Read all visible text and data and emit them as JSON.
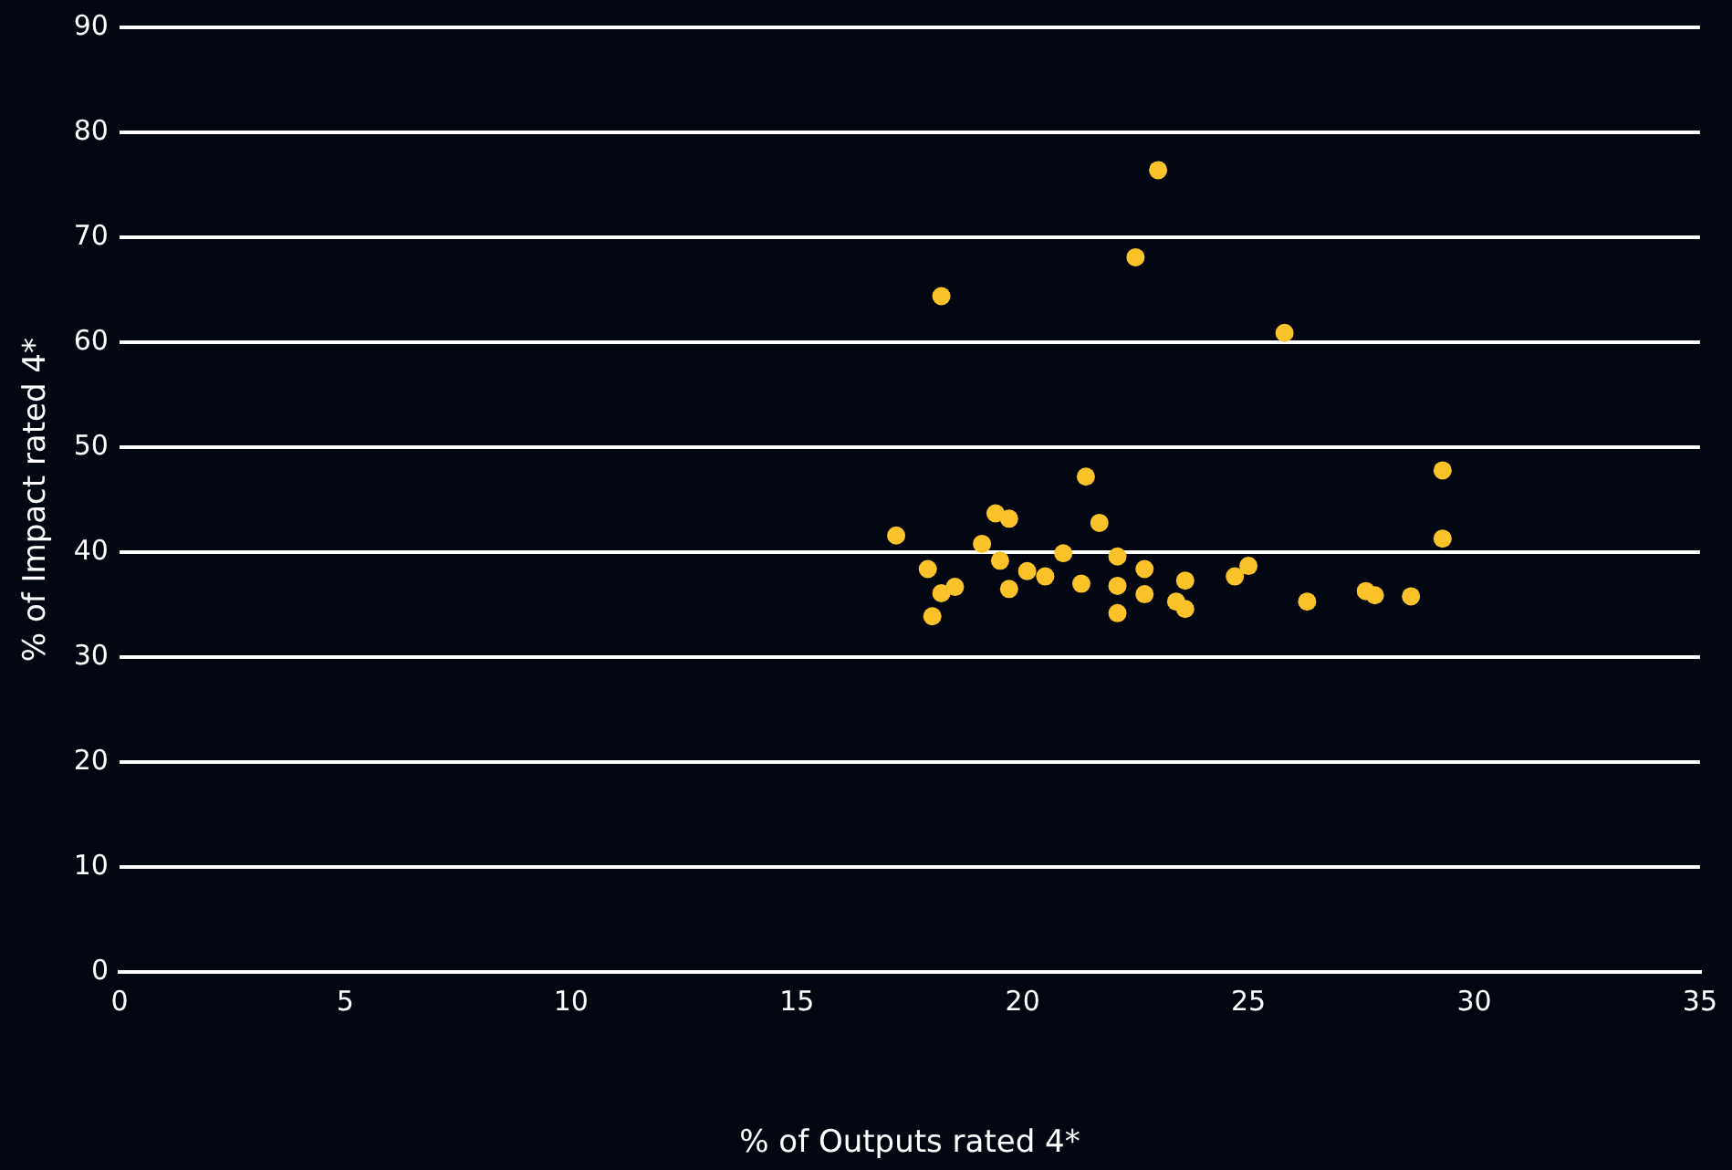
{
  "chart_data": {
    "type": "scatter",
    "xlabel": "% of Outputs rated 4*",
    "ylabel": "% of Impact rated 4*",
    "xlim": [
      0,
      35
    ],
    "xticks": [
      0,
      5,
      10,
      15,
      20,
      25,
      30,
      35
    ],
    "ylim": [
      0,
      90
    ],
    "yticks": [
      0,
      10,
      20,
      30,
      40,
      50,
      60,
      70,
      80,
      90
    ],
    "grid": "y",
    "legend": false,
    "marker": "circle",
    "series": [
      {
        "color": "#fcc22a",
        "x": [
          17.2,
          17.9,
          18.0,
          18.2,
          18.2,
          18.5,
          19.1,
          19.4,
          19.5,
          19.7,
          19.7,
          20.1,
          20.5,
          20.9,
          21.3,
          21.4,
          21.7,
          22.1,
          22.1,
          22.1,
          22.5,
          22.7,
          22.7,
          23.0,
          23.4,
          23.6,
          23.6,
          24.7,
          25.0,
          25.8,
          26.3,
          27.6,
          27.8,
          28.6,
          29.3,
          29.3
        ],
        "values": [
          41.6,
          38.4,
          33.9,
          64.4,
          36.1,
          36.7,
          40.8,
          43.7,
          39.2,
          43.2,
          36.5,
          38.2,
          37.7,
          39.9,
          37.0,
          47.2,
          42.8,
          39.6,
          36.8,
          34.2,
          68.1,
          38.4,
          36.0,
          76.4,
          35.3,
          34.6,
          37.3,
          37.7,
          38.7,
          60.9,
          35.3,
          36.3,
          35.9,
          35.8,
          47.8,
          41.3
        ]
      }
    ]
  }
}
